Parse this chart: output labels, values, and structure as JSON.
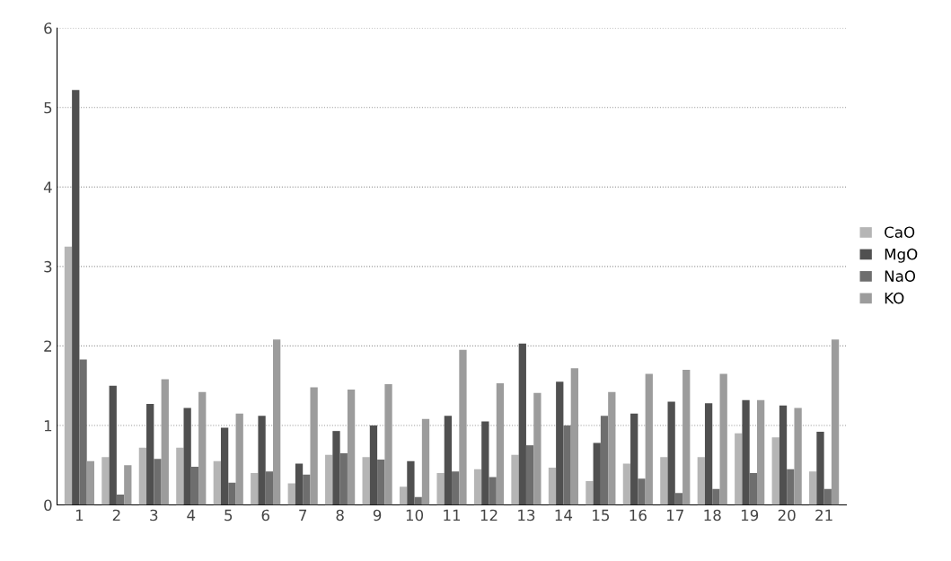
{
  "chart_data": {
    "type": "bar",
    "categories": [
      "1",
      "2",
      "3",
      "4",
      "5",
      "6",
      "7",
      "8",
      "9",
      "10",
      "11",
      "12",
      "13",
      "14",
      "15",
      "16",
      "17",
      "18",
      "19",
      "20",
      "21"
    ],
    "series": [
      {
        "name": "CaO",
        "color": "#b5b5b5",
        "values": [
          3.25,
          0.6,
          0.72,
          0.72,
          0.55,
          0.4,
          0.27,
          0.63,
          0.6,
          0.23,
          0.4,
          0.45,
          0.63,
          0.47,
          0.3,
          0.52,
          0.6,
          0.6,
          0.9,
          0.85,
          0.42
        ]
      },
      {
        "name": "MgO",
        "color": "#505050",
        "values": [
          5.22,
          1.5,
          1.27,
          1.22,
          0.97,
          1.12,
          0.52,
          0.93,
          1.0,
          0.55,
          1.12,
          1.05,
          2.03,
          1.55,
          0.78,
          1.15,
          1.3,
          1.28,
          1.32,
          1.25,
          0.92
        ]
      },
      {
        "name": "NaO",
        "color": "#6e6e6e",
        "values": [
          1.83,
          0.13,
          0.58,
          0.48,
          0.28,
          0.42,
          0.38,
          0.65,
          0.57,
          0.1,
          0.42,
          0.35,
          0.75,
          1.0,
          1.12,
          0.33,
          0.15,
          0.2,
          0.4,
          0.45,
          0.2
        ]
      },
      {
        "name": "KO",
        "color": "#9c9c9c",
        "values": [
          0.55,
          0.5,
          1.58,
          1.42,
          1.15,
          2.08,
          1.48,
          1.45,
          1.52,
          1.08,
          1.95,
          1.53,
          1.41,
          1.72,
          1.42,
          1.65,
          1.7,
          1.65,
          1.32,
          1.22,
          2.08
        ]
      }
    ],
    "ylim": [
      0,
      6
    ],
    "yticks": [
      0,
      1,
      2,
      3,
      4,
      5,
      6
    ],
    "grid": "y",
    "legend": "right"
  }
}
